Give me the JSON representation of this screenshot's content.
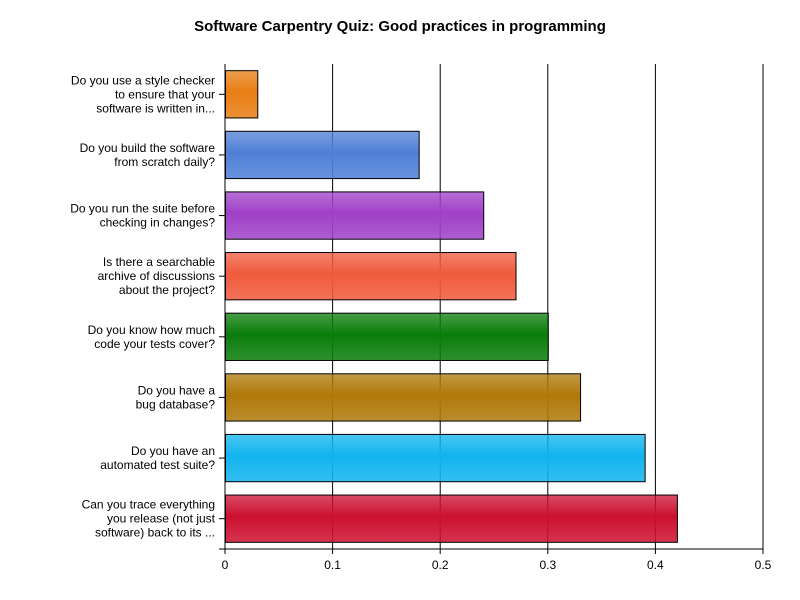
{
  "chart_data": {
    "type": "bar",
    "orientation": "horizontal",
    "title": "Software Carpentry Quiz: Good practices in programming",
    "xlabel": "",
    "ylabel": "",
    "xlim": [
      0,
      0.5
    ],
    "x_ticks": [
      "0",
      "0.1",
      "0.2",
      "0.3",
      "0.4",
      "0.5"
    ],
    "grid": true,
    "legend": false,
    "categories": [
      [
        "Do you use a style checker",
        "to ensure that your",
        "software is written in..."
      ],
      [
        "Do you build the software",
        "from scratch daily?"
      ],
      [
        "Do you run the suite before",
        "checking in changes?"
      ],
      [
        "Is there a searchable",
        "archive of discussions",
        "about the project?"
      ],
      [
        "Do you know how much",
        "code your tests cover?"
      ],
      [
        "Do you have a",
        "bug database?"
      ],
      [
        "Do you have an",
        "automated test suite?"
      ],
      [
        "Can you trace everything",
        "you release (not just",
        "software) back to its ..."
      ]
    ],
    "values": [
      0.03,
      0.18,
      0.24,
      0.27,
      0.3,
      0.33,
      0.39,
      0.42
    ],
    "colors": [
      "#e87d14",
      "#4f7fd6",
      "#a040c8",
      "#f05a3c",
      "#0a7d0a",
      "#b07808",
      "#10b4ee",
      "#cc1030"
    ]
  }
}
